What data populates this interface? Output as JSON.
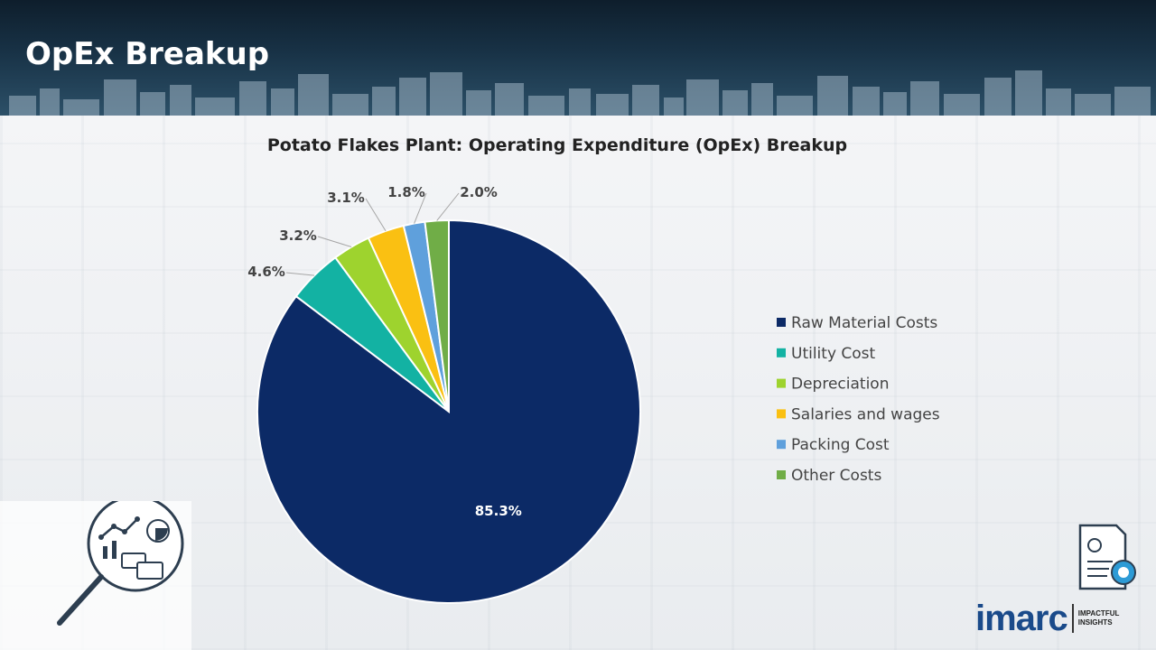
{
  "header": {
    "title": "OpEx Breakup"
  },
  "chart_data": {
    "type": "pie",
    "title": "Potato Flakes Plant: Operating Expenditure (OpEx) Breakup",
    "unit": "%",
    "legend_position": "right",
    "slices": [
      {
        "label": "Raw Material Costs",
        "value": 85.3,
        "display": "85.3%",
        "color": "#0c2a66"
      },
      {
        "label": "Utility Cost",
        "value": 4.6,
        "display": "4.6%",
        "color": "#13b2a3"
      },
      {
        "label": "Depreciation",
        "value": 3.2,
        "display": "3.2%",
        "color": "#9ed32e"
      },
      {
        "label": "Salaries and wages",
        "value": 3.1,
        "display": "3.1%",
        "color": "#fac012"
      },
      {
        "label": "Packing Cost",
        "value": 1.8,
        "display": "1.8%",
        "color": "#5fa0dc"
      },
      {
        "label": "Other Costs",
        "value": 2.0,
        "display": "2.0%",
        "color": "#70ad47"
      }
    ]
  },
  "branding": {
    "logo_text": "imarc",
    "logo_tagline_1": "IMPACTFUL",
    "logo_tagline_2": "INSIGHTS",
    "logo_icon": "imarc-logo",
    "decorative_icons": [
      "magnifier-analytics-icon",
      "report-finance-icon"
    ]
  }
}
